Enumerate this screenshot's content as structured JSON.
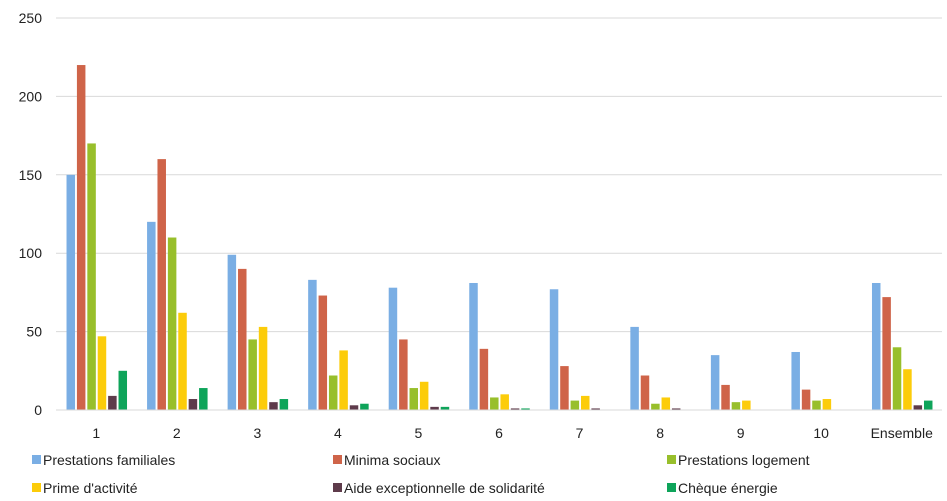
{
  "chart_data": {
    "type": "bar",
    "title": "",
    "xlabel": "",
    "ylabel": "",
    "ylim": [
      0,
      250
    ],
    "yticks": [
      "0",
      "50",
      "100",
      "150",
      "200",
      "250"
    ],
    "grid": true,
    "legend_position": "bottom",
    "categories": [
      "1",
      "2",
      "3",
      "4",
      "5",
      "6",
      "7",
      "8",
      "9",
      "10",
      "Ensemble"
    ],
    "series": [
      {
        "name": "Prestations familiales",
        "color": "#7aaee4",
        "values": [
          150,
          120,
          99,
          83,
          78,
          81,
          77,
          53,
          35,
          37,
          81
        ]
      },
      {
        "name": "Minima sociaux",
        "color": "#cf6449",
        "values": [
          220,
          160,
          90,
          73,
          45,
          39,
          28,
          22,
          16,
          13,
          72
        ]
      },
      {
        "name": "Prestations logement",
        "color": "#98bf2b",
        "values": [
          170,
          110,
          45,
          22,
          14,
          8,
          6,
          4,
          5,
          6,
          40
        ]
      },
      {
        "name": "Prime d'activité",
        "color": "#fccc0a",
        "values": [
          47,
          62,
          53,
          38,
          18,
          10,
          9,
          8,
          6,
          7,
          26
        ]
      },
      {
        "name": "Aide exceptionnelle de solidarité",
        "color": "#5e3b4b",
        "values": [
          9,
          7,
          5,
          3,
          2,
          1,
          1,
          1,
          0,
          0,
          3
        ]
      },
      {
        "name": "Chèque énergie",
        "color": "#0ea45a",
        "values": [
          25,
          14,
          7,
          4,
          2,
          1,
          0,
          0,
          0,
          0,
          6
        ]
      }
    ]
  }
}
